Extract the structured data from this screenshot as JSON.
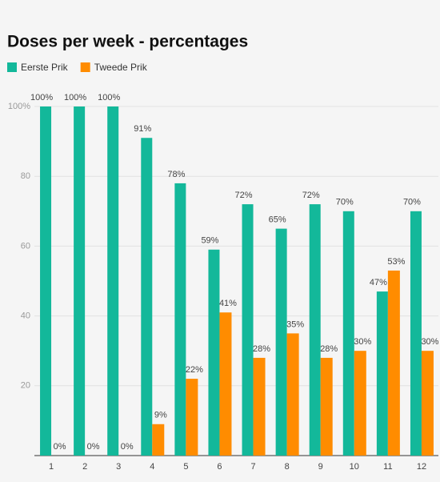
{
  "chart_data": {
    "type": "bar",
    "title": "Doses per week - percentages",
    "categories": [
      "1",
      "2",
      "3",
      "4",
      "5",
      "6",
      "7",
      "8",
      "9",
      "10",
      "11",
      "12"
    ],
    "series": [
      {
        "name": "Eerste Prik",
        "color": "#13b89a",
        "values": [
          100,
          100,
          100,
          91,
          78,
          59,
          72,
          65,
          72,
          70,
          47,
          70
        ],
        "value_labels": [
          "100%",
          "100%",
          "100%",
          "91%",
          "78%",
          "59%",
          "72%",
          "65%",
          "72%",
          "70%",
          "47%",
          "70%"
        ]
      },
      {
        "name": "Tweede Prik",
        "color": "#ff8c00",
        "values": [
          0,
          0,
          0,
          9,
          22,
          41,
          28,
          35,
          28,
          30,
          53,
          30
        ],
        "value_labels": [
          "0%",
          "0%",
          "0%",
          "9%",
          "22%",
          "41%",
          "28%",
          "35%",
          "28%",
          "30%",
          "53%",
          "30%"
        ]
      }
    ],
    "ylim": [
      0,
      100
    ],
    "yticks": [
      20,
      40,
      60,
      80,
      {
        "value": 100,
        "label": "100%"
      }
    ],
    "grid": true
  }
}
